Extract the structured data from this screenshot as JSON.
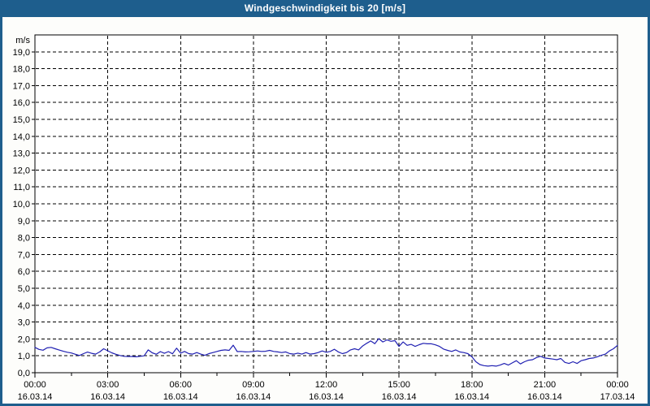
{
  "title_bar": {
    "title": "Windgeschwindigkeit bis 20 [m/s]",
    "bg_color": "#1E5E8D",
    "text_color": "#FFFFFF"
  },
  "frame": {
    "border_color": "#1E5E8D",
    "background": "#FDFDFB"
  },
  "chart_data": {
    "type": "line",
    "title": "Windgeschwindigkeit bis 20 [m/s]",
    "ylabel": "m/s",
    "xlabel": "",
    "ylim": [
      0,
      20
    ],
    "ytick_step": 1,
    "decimal_separator": ",",
    "x_range_hours": [
      0,
      24
    ],
    "xtick_step_hours": 3,
    "x_minor_tick_hours": 1.5,
    "grid": {
      "horizontal_every": 1,
      "vertical_every_hours": 3,
      "style": "dashed",
      "color": "#000000"
    },
    "axis_color": "#000000",
    "plot_bg": "#FFFFFF",
    "legend": "none",
    "xticks": [
      {
        "time": "00:00",
        "date": "16.03.14"
      },
      {
        "time": "03:00",
        "date": "16.03.14"
      },
      {
        "time": "06:00",
        "date": "16.03.14"
      },
      {
        "time": "09:00",
        "date": "16.03.14"
      },
      {
        "time": "12:00",
        "date": "16.03.14"
      },
      {
        "time": "15:00",
        "date": "16.03.14"
      },
      {
        "time": "18:00",
        "date": "16.03.14"
      },
      {
        "time": "21:00",
        "date": "16.03.14"
      },
      {
        "time": "00:00",
        "date": "17.03.14"
      }
    ],
    "series": [
      {
        "name": "windgeschwindigkeit",
        "color": "#2020B2",
        "unit": "m/s",
        "start_minutes": 0,
        "interval_minutes": 10,
        "values": [
          1.5,
          1.38,
          1.33,
          1.47,
          1.5,
          1.42,
          1.34,
          1.27,
          1.21,
          1.17,
          1.09,
          1.02,
          1.13,
          1.22,
          1.15,
          1.1,
          1.23,
          1.42,
          1.3,
          1.18,
          1.09,
          1.02,
          0.97,
          0.96,
          0.96,
          0.94,
          0.97,
          1.0,
          1.35,
          1.18,
          1.09,
          1.25,
          1.15,
          1.25,
          1.12,
          1.45,
          1.16,
          1.26,
          1.13,
          1.1,
          1.19,
          1.1,
          1.03,
          1.13,
          1.19,
          1.26,
          1.32,
          1.35,
          1.32,
          1.63,
          1.25,
          1.26,
          1.23,
          1.24,
          1.26,
          1.29,
          1.26,
          1.27,
          1.32,
          1.26,
          1.23,
          1.19,
          1.23,
          1.13,
          1.1,
          1.16,
          1.1,
          1.19,
          1.1,
          1.13,
          1.19,
          1.29,
          1.21,
          1.26,
          1.39,
          1.23,
          1.13,
          1.19,
          1.35,
          1.42,
          1.35,
          1.58,
          1.74,
          1.88,
          1.72,
          2.02,
          1.82,
          1.94,
          1.86,
          1.9,
          1.56,
          1.82,
          1.62,
          1.68,
          1.56,
          1.66,
          1.74,
          1.71,
          1.71,
          1.65,
          1.56,
          1.4,
          1.32,
          1.26,
          1.35,
          1.23,
          1.19,
          1.13,
          0.94,
          0.65,
          0.48,
          0.42,
          0.39,
          0.42,
          0.39,
          0.45,
          0.55,
          0.45,
          0.58,
          0.71,
          0.52,
          0.65,
          0.74,
          0.77,
          0.9,
          0.97,
          0.87,
          0.84,
          0.81,
          0.77,
          0.84,
          0.61,
          0.55,
          0.65,
          0.55,
          0.71,
          0.77,
          0.84,
          0.87,
          0.94,
          1.03,
          1.1,
          1.29,
          1.42,
          1.62
        ]
      }
    ]
  }
}
